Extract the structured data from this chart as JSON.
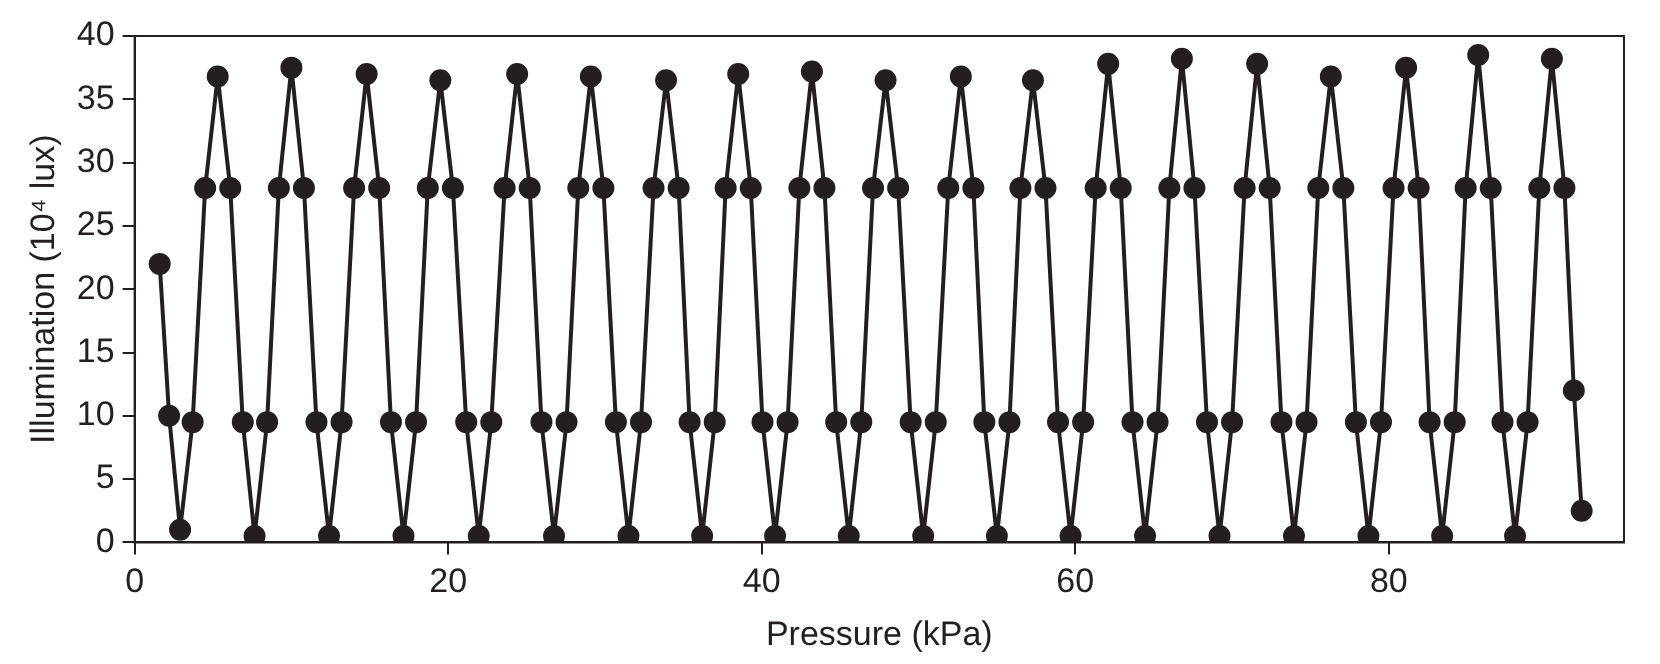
{
  "chart_data": {
    "type": "line",
    "xlabel": "Pressure (kPa)",
    "ylabel": "Illumination (10⁴ lux)",
    "xlim": [
      0,
      95
    ],
    "xticks": [
      0,
      20,
      40,
      60,
      80
    ],
    "ylim": [
      0,
      40
    ],
    "yticks": [
      0,
      5,
      10,
      15,
      20,
      25,
      30,
      35,
      40
    ],
    "grid": false,
    "legend": false,
    "marker": "circle",
    "line_style": "solid",
    "series": [
      {
        "color": "#231f20",
        "x": [
          1.6,
          2.2,
          2.9,
          3.7,
          4.5,
          5.3,
          6.1,
          6.9,
          7.65,
          8.45,
          9.2,
          10.0,
          10.8,
          11.6,
          12.4,
          13.2,
          14.0,
          14.8,
          15.6,
          16.35,
          17.15,
          17.95,
          18.7,
          19.5,
          20.3,
          21.15,
          21.95,
          22.75,
          23.6,
          24.4,
          25.2,
          25.95,
          26.75,
          27.55,
          28.3,
          29.1,
          29.9,
          30.7,
          31.5,
          32.3,
          33.1,
          33.9,
          34.7,
          35.4,
          36.2,
          37.0,
          37.7,
          38.5,
          39.3,
          40.05,
          40.85,
          41.65,
          42.4,
          43.2,
          44.0,
          44.75,
          45.55,
          46.35,
          47.1,
          47.9,
          48.7,
          49.5,
          50.3,
          51.1,
          51.9,
          52.7,
          53.5,
          54.2,
          55.0,
          55.8,
          56.5,
          57.3,
          58.1,
          58.9,
          59.7,
          60.5,
          61.3,
          62.1,
          62.9,
          63.65,
          64.45,
          65.25,
          66.0,
          66.8,
          67.6,
          68.4,
          69.2,
          70.0,
          70.8,
          71.6,
          72.4,
          73.15,
          73.95,
          74.75,
          75.5,
          76.3,
          77.1,
          77.9,
          78.7,
          79.5,
          80.3,
          81.1,
          81.9,
          82.6,
          83.4,
          84.2,
          84.9,
          85.7,
          86.5,
          87.25,
          88.05,
          88.85,
          89.6,
          90.4,
          91.2,
          91.8,
          92.3
        ],
        "values": [
          22,
          10,
          1,
          9.5,
          28,
          36.8,
          28,
          9.5,
          0.5,
          9.5,
          28,
          37.5,
          28,
          9.5,
          0.5,
          9.5,
          28,
          37,
          28,
          9.5,
          0.5,
          9.5,
          28,
          36.5,
          28,
          9.5,
          0.5,
          9.5,
          28,
          37,
          28,
          9.5,
          0.5,
          9.5,
          28,
          36.8,
          28,
          9.5,
          0.5,
          9.5,
          28,
          36.5,
          28,
          9.5,
          0.5,
          9.5,
          28,
          37,
          28,
          9.5,
          0.5,
          9.5,
          28,
          37.2,
          28,
          9.5,
          0.5,
          9.5,
          28,
          36.5,
          28,
          9.5,
          0.5,
          9.5,
          28,
          36.8,
          28,
          9.5,
          0.5,
          9.5,
          28,
          36.5,
          28,
          9.5,
          0.5,
          9.5,
          28,
          37.8,
          28,
          9.5,
          0.5,
          9.5,
          28,
          38.2,
          28,
          9.5,
          0.5,
          9.5,
          28,
          37.8,
          28,
          9.5,
          0.5,
          9.5,
          28,
          36.8,
          28,
          9.5,
          0.5,
          9.5,
          28,
          37.5,
          28,
          9.5,
          0.5,
          9.5,
          28,
          38.5,
          28,
          9.5,
          0.5,
          9.5,
          28,
          38.2,
          28,
          12,
          2.5
        ]
      }
    ]
  }
}
